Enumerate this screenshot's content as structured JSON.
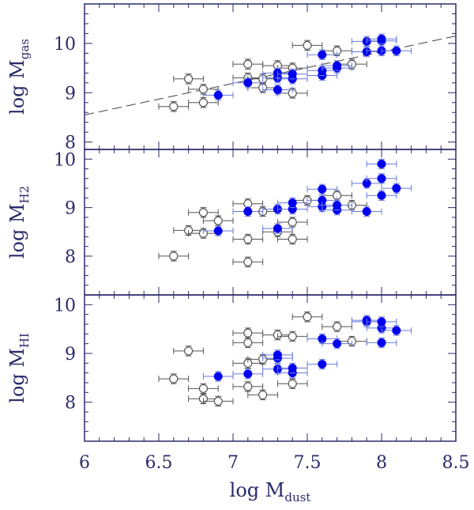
{
  "chart_data": {
    "type": "scatter",
    "xlabel": "log M",
    "xlabel_sub": "dust",
    "xlim": [
      6,
      8.5
    ],
    "x_ticks": [
      "6",
      "6.5",
      "7",
      "7.5",
      "8",
      "8.5"
    ],
    "panels": [
      {
        "id": "gas",
        "ylabel": "log M",
        "ylabel_sub": "gas",
        "ylim": [
          7.85,
          10.8
        ],
        "y_ticks": [
          "8",
          "9",
          "10"
        ],
        "fit_line": {
          "x": [
            6,
            8.5
          ],
          "y": [
            8.55,
            10.15
          ]
        },
        "open_points": [
          {
            "x": 6.6,
            "y": 8.72
          },
          {
            "x": 6.7,
            "y": 9.28
          },
          {
            "x": 6.8,
            "y": 8.8
          },
          {
            "x": 6.8,
            "y": 9.07
          },
          {
            "x": 7.1,
            "y": 9.3
          },
          {
            "x": 7.1,
            "y": 9.58
          },
          {
            "x": 7.2,
            "y": 9.1
          },
          {
            "x": 7.2,
            "y": 9.28
          },
          {
            "x": 7.3,
            "y": 9.55
          },
          {
            "x": 7.4,
            "y": 8.99
          },
          {
            "x": 7.4,
            "y": 9.5
          },
          {
            "x": 7.5,
            "y": 9.96
          },
          {
            "x": 7.7,
            "y": 9.85
          },
          {
            "x": 7.8,
            "y": 9.58
          }
        ],
        "filled_points": [
          {
            "x": 6.9,
            "y": 8.95
          },
          {
            "x": 7.1,
            "y": 9.2
          },
          {
            "x": 7.3,
            "y": 9.06
          },
          {
            "x": 7.3,
            "y": 9.3
          },
          {
            "x": 7.3,
            "y": 9.4
          },
          {
            "x": 7.4,
            "y": 9.28
          },
          {
            "x": 7.4,
            "y": 9.38
          },
          {
            "x": 7.6,
            "y": 9.35
          },
          {
            "x": 7.6,
            "y": 9.45
          },
          {
            "x": 7.6,
            "y": 9.77
          },
          {
            "x": 7.7,
            "y": 9.5
          },
          {
            "x": 7.7,
            "y": 9.55
          },
          {
            "x": 7.9,
            "y": 9.83
          },
          {
            "x": 7.9,
            "y": 10.04
          },
          {
            "x": 8.0,
            "y": 9.85
          },
          {
            "x": 8.0,
            "y": 10.05
          },
          {
            "x": 8.0,
            "y": 10.09
          },
          {
            "x": 8.1,
            "y": 9.85
          }
        ]
      },
      {
        "id": "h2",
        "ylabel": "log M",
        "ylabel_sub": "H2",
        "ylim": [
          7.2,
          10.2
        ],
        "y_ticks": [
          "8",
          "9",
          "10"
        ],
        "open_points": [
          {
            "x": 6.6,
            "y": 8.0
          },
          {
            "x": 6.7,
            "y": 8.53
          },
          {
            "x": 6.8,
            "y": 8.47
          },
          {
            "x": 6.8,
            "y": 8.9
          },
          {
            "x": 6.9,
            "y": 8.73
          },
          {
            "x": 7.1,
            "y": 7.88
          },
          {
            "x": 7.1,
            "y": 8.35
          },
          {
            "x": 7.1,
            "y": 9.08
          },
          {
            "x": 7.2,
            "y": 8.92
          },
          {
            "x": 7.3,
            "y": 8.5
          },
          {
            "x": 7.4,
            "y": 8.35
          },
          {
            "x": 7.4,
            "y": 8.7
          },
          {
            "x": 7.5,
            "y": 9.15
          },
          {
            "x": 7.7,
            "y": 9.25
          },
          {
            "x": 7.8,
            "y": 9.05
          }
        ],
        "filled_points": [
          {
            "x": 6.9,
            "y": 8.52
          },
          {
            "x": 7.1,
            "y": 8.92
          },
          {
            "x": 7.3,
            "y": 8.57
          },
          {
            "x": 7.3,
            "y": 8.97
          },
          {
            "x": 7.4,
            "y": 8.97
          },
          {
            "x": 7.4,
            "y": 9.1
          },
          {
            "x": 7.6,
            "y": 9.02
          },
          {
            "x": 7.6,
            "y": 9.15
          },
          {
            "x": 7.6,
            "y": 9.38
          },
          {
            "x": 7.7,
            "y": 8.95
          },
          {
            "x": 7.7,
            "y": 9.05
          },
          {
            "x": 7.9,
            "y": 8.92
          },
          {
            "x": 7.9,
            "y": 9.5
          },
          {
            "x": 8.0,
            "y": 9.25
          },
          {
            "x": 8.0,
            "y": 9.6
          },
          {
            "x": 8.0,
            "y": 9.9
          },
          {
            "x": 8.1,
            "y": 9.4
          }
        ]
      },
      {
        "id": "hi",
        "ylabel": "log M",
        "ylabel_sub": "HI",
        "ylim": [
          7.2,
          10.2
        ],
        "y_ticks": [
          "8",
          "9",
          "10"
        ],
        "open_points": [
          {
            "x": 6.6,
            "y": 8.48
          },
          {
            "x": 6.7,
            "y": 9.05
          },
          {
            "x": 6.8,
            "y": 8.07
          },
          {
            "x": 6.8,
            "y": 8.28
          },
          {
            "x": 6.9,
            "y": 8.02
          },
          {
            "x": 7.1,
            "y": 8.32
          },
          {
            "x": 7.1,
            "y": 8.8
          },
          {
            "x": 7.1,
            "y": 9.22
          },
          {
            "x": 7.1,
            "y": 9.42
          },
          {
            "x": 7.2,
            "y": 8.15
          },
          {
            "x": 7.2,
            "y": 8.88
          },
          {
            "x": 7.3,
            "y": 9.38
          },
          {
            "x": 7.4,
            "y": 8.38
          },
          {
            "x": 7.4,
            "y": 9.35
          },
          {
            "x": 7.5,
            "y": 9.75
          },
          {
            "x": 7.7,
            "y": 9.55
          },
          {
            "x": 7.8,
            "y": 9.25
          }
        ],
        "filled_points": [
          {
            "x": 6.9,
            "y": 8.53
          },
          {
            "x": 7.1,
            "y": 8.58
          },
          {
            "x": 7.3,
            "y": 8.68
          },
          {
            "x": 7.3,
            "y": 8.9
          },
          {
            "x": 7.3,
            "y": 8.97
          },
          {
            "x": 7.4,
            "y": 8.6
          },
          {
            "x": 7.4,
            "y": 8.7
          },
          {
            "x": 7.6,
            "y": 8.78
          },
          {
            "x": 7.6,
            "y": 9.3
          },
          {
            "x": 7.7,
            "y": 9.2
          },
          {
            "x": 7.9,
            "y": 9.65
          },
          {
            "x": 7.9,
            "y": 9.68
          },
          {
            "x": 8.0,
            "y": 9.22
          },
          {
            "x": 8.0,
            "y": 9.52
          },
          {
            "x": 8.0,
            "y": 9.65
          },
          {
            "x": 8.1,
            "y": 9.47
          }
        ]
      }
    ],
    "errors": {
      "x": 0.1,
      "y": 0.1
    },
    "colors": {
      "open": "#555555",
      "filled": "#0000ee",
      "filled_error": "#6a7adc",
      "axis": "#2b2b6b",
      "fit_line": "#444444"
    }
  }
}
